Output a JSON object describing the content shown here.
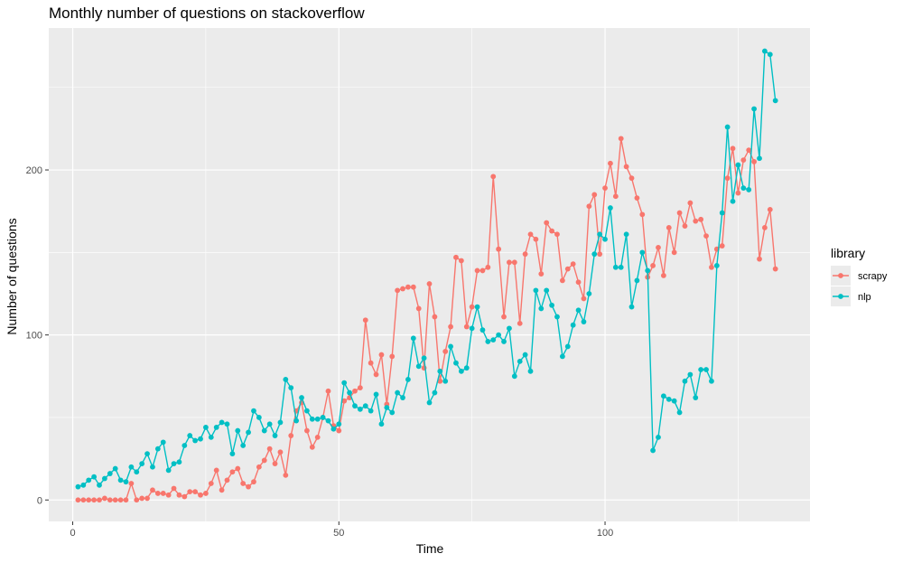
{
  "chart_data": {
    "type": "line",
    "title": "Monthly number of questions on stackoverflow",
    "xlabel": "Time",
    "ylabel": "Number of questions",
    "xlim": [
      -4.5,
      138.5
    ],
    "ylim": [
      -13,
      286
    ],
    "x_ticks": [
      0,
      50,
      100
    ],
    "y_ticks": [
      0,
      100,
      200
    ],
    "grid": true,
    "legend_title": "library",
    "legend_position": "right",
    "x": [
      1,
      2,
      3,
      4,
      5,
      6,
      7,
      8,
      9,
      10,
      11,
      12,
      13,
      14,
      15,
      16,
      17,
      18,
      19,
      20,
      21,
      22,
      23,
      24,
      25,
      26,
      27,
      28,
      29,
      30,
      31,
      32,
      33,
      34,
      35,
      36,
      37,
      38,
      39,
      40,
      41,
      42,
      43,
      44,
      45,
      46,
      47,
      48,
      49,
      50,
      51,
      52,
      53,
      54,
      55,
      56,
      57,
      58,
      59,
      60,
      61,
      62,
      63,
      64,
      65,
      66,
      67,
      68,
      69,
      70,
      71,
      72,
      73,
      74,
      75,
      76,
      77,
      78,
      79,
      80,
      81,
      82,
      83,
      84,
      85,
      86,
      87,
      88,
      89,
      90,
      91,
      92,
      93,
      94,
      95,
      96,
      97,
      98,
      99,
      100,
      101,
      102,
      103,
      104,
      105,
      106,
      107,
      108,
      109,
      110,
      111,
      112,
      113,
      114,
      115,
      116,
      117,
      118,
      119,
      120,
      121,
      122,
      123,
      124,
      125,
      126,
      127,
      128,
      129,
      130,
      131,
      132
    ],
    "series": [
      {
        "name": "scrapy",
        "color": "#F8766D",
        "values": [
          0,
          0,
          0,
          0,
          0,
          1,
          0,
          0,
          0,
          0,
          10,
          0,
          1,
          1,
          6,
          4,
          4,
          3,
          7,
          3,
          2,
          5,
          5,
          3,
          4,
          10,
          18,
          6,
          12,
          17,
          19,
          10,
          8,
          11,
          20,
          24,
          31,
          22,
          29,
          15,
          39,
          54,
          59,
          42,
          32,
          38,
          50,
          66,
          45,
          42,
          60,
          62,
          66,
          68,
          109,
          83,
          76,
          88,
          58,
          87,
          127,
          128,
          129,
          129,
          116,
          80,
          131,
          111,
          72,
          90,
          105,
          147,
          145,
          105,
          117,
          139,
          139,
          141,
          196,
          152,
          111,
          144,
          144,
          107,
          149,
          161,
          158,
          137,
          168,
          163,
          161,
          133,
          140,
          143,
          132,
          122,
          178,
          185,
          149,
          189,
          204,
          184,
          219,
          202,
          195,
          183,
          173,
          135,
          142,
          153,
          136,
          165,
          150,
          174,
          166,
          180,
          169,
          170,
          160,
          141,
          152,
          154,
          195,
          213,
          186,
          206,
          212,
          205,
          146,
          165,
          176,
          140
        ]
      },
      {
        "name": "nlp",
        "color": "#00BFC4",
        "values": [
          8,
          9,
          12,
          14,
          9,
          13,
          16,
          19,
          12,
          11,
          20,
          17,
          22,
          28,
          20,
          31,
          35,
          18,
          22,
          23,
          33,
          39,
          36,
          37,
          44,
          38,
          44,
          47,
          46,
          28,
          42,
          33,
          41,
          54,
          50,
          42,
          46,
          39,
          47,
          73,
          68,
          48,
          62,
          54,
          49,
          49,
          50,
          48,
          43,
          46,
          71,
          65,
          57,
          55,
          57,
          54,
          64,
          46,
          56,
          53,
          65,
          62,
          73,
          98,
          81,
          86,
          59,
          65,
          78,
          72,
          93,
          83,
          78,
          80,
          104,
          117,
          103,
          96,
          97,
          100,
          96,
          104,
          75,
          84,
          88,
          78,
          127,
          116,
          127,
          118,
          111,
          87,
          93,
          106,
          115,
          108,
          125,
          149,
          161,
          158,
          177,
          141,
          141,
          161,
          117,
          133,
          150,
          139,
          30,
          38,
          63,
          61,
          60,
          53,
          72,
          76,
          62,
          79,
          79,
          72,
          142,
          174,
          226,
          181,
          203,
          189,
          188,
          237,
          207,
          272,
          270,
          242
        ]
      }
    ]
  }
}
